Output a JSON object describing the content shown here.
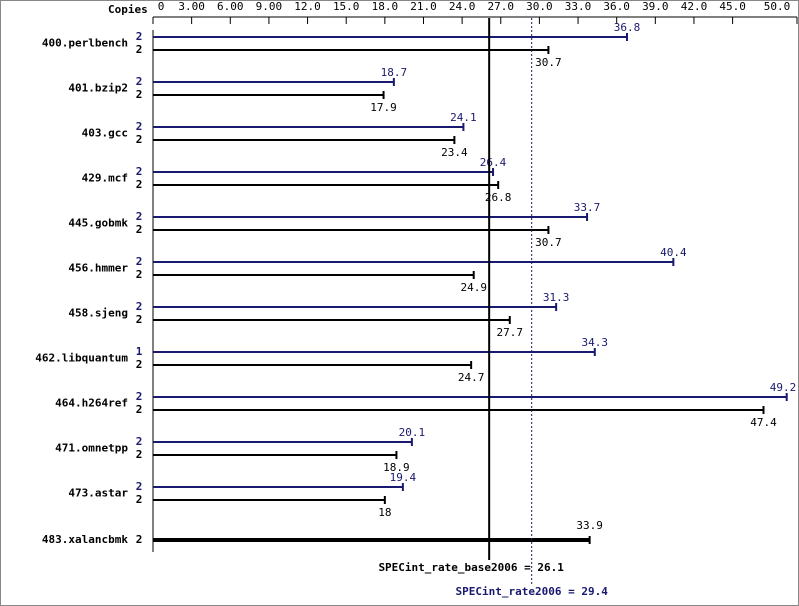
{
  "chart_data": {
    "type": "bar",
    "xlabel": "Copies",
    "xlim": [
      0,
      50
    ],
    "xticks": [
      0,
      {
        "value": 3,
        "label": "3.00"
      },
      {
        "value": 6,
        "label": "6.00"
      },
      {
        "value": 9,
        "label": "9.00"
      },
      {
        "value": 12,
        "label": "12.0"
      },
      {
        "value": 15,
        "label": "15.0"
      },
      {
        "value": 18,
        "label": "18.0"
      },
      {
        "value": 21,
        "label": "21.0"
      },
      {
        "value": 24,
        "label": "24.0"
      },
      {
        "value": 27,
        "label": "27.0"
      },
      {
        "value": 30,
        "label": "30.0"
      },
      {
        "value": 33,
        "label": "33.0"
      },
      {
        "value": 36,
        "label": "36.0"
      },
      {
        "value": 39,
        "label": "39.0"
      },
      {
        "value": 42,
        "label": "42.0"
      },
      {
        "value": 45,
        "label": "45.0"
      },
      {
        "value": 50,
        "label": "50.0"
      }
    ],
    "categories": [
      "400.perlbench",
      "401.bzip2",
      "403.gcc",
      "429.mcf",
      "445.gobmk",
      "456.hmmer",
      "458.sjeng",
      "462.libquantum",
      "464.h264ref",
      "471.omnetpp",
      "473.astar",
      "483.xalancbmk"
    ],
    "series": [
      {
        "color": "#191970",
        "copies": [
          2,
          2,
          2,
          2,
          2,
          2,
          2,
          1,
          2,
          2,
          2,
          null
        ],
        "values": [
          36.8,
          18.7,
          24.1,
          26.4,
          33.7,
          40.4,
          31.3,
          34.3,
          49.2,
          20.1,
          19.4,
          null
        ]
      },
      {
        "color": "#000000",
        "copies": [
          2,
          2,
          2,
          2,
          2,
          2,
          2,
          2,
          2,
          2,
          2,
          2
        ],
        "values": [
          30.7,
          17.9,
          23.4,
          26.8,
          30.7,
          24.9,
          27.7,
          24.7,
          47.4,
          18.9,
          18.0,
          33.9
        ]
      }
    ],
    "reference_lines": [
      {
        "label": "SPECint_rate_base2006 = 26.1",
        "value": 26.1,
        "color": "#000000",
        "style": "solid"
      },
      {
        "label": "SPECint_rate2006 = 29.4",
        "value": 29.4,
        "color": "#191970",
        "style": "dotted"
      }
    ]
  }
}
